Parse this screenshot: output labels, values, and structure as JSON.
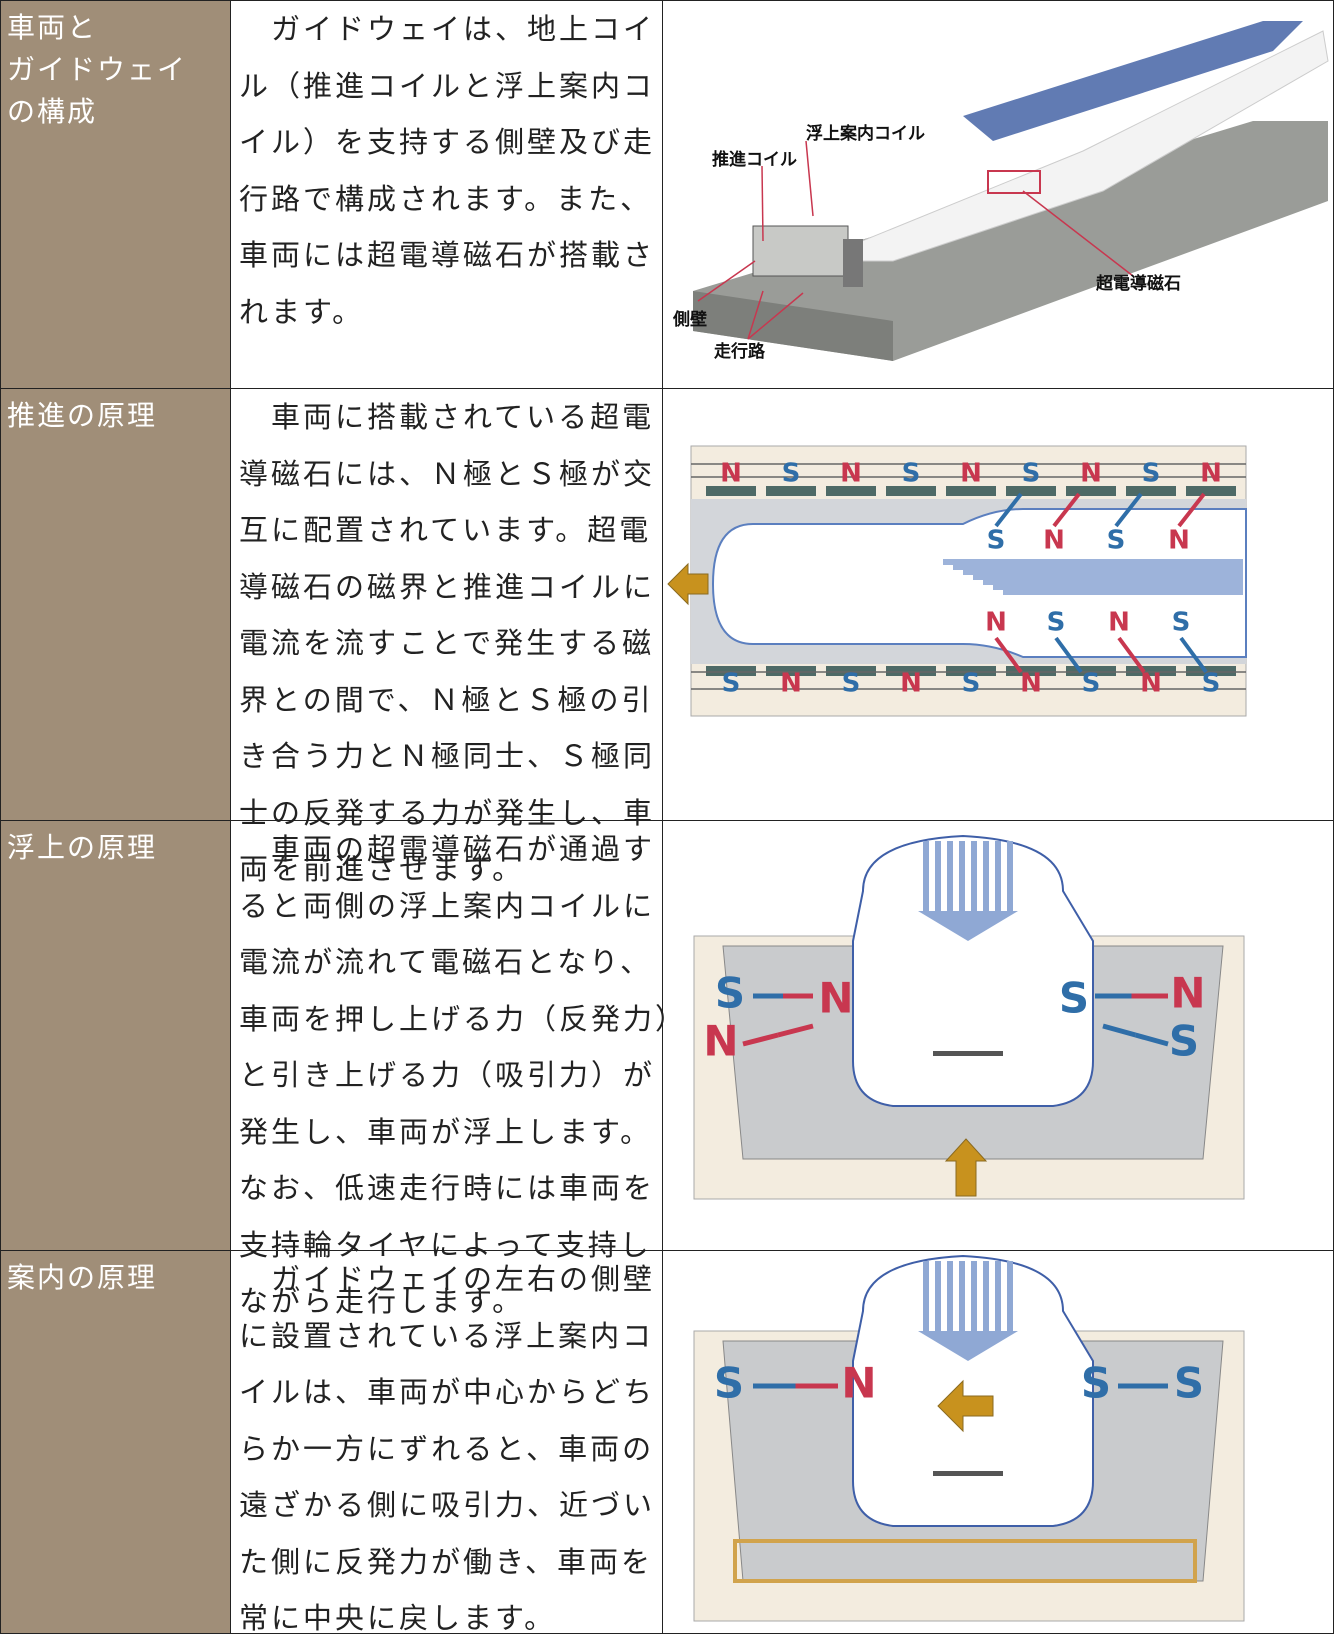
{
  "rows": [
    {
      "heading": [
        "車両と",
        "ガイドウェイ",
        "の構成"
      ],
      "body": [
        "ガイドウェイは、地上コイ",
        "ル（推進コイルと浮上案内コ",
        "イル）を支持する側壁及び走",
        "行路で構成されます。また、",
        "車両には超電導磁石が搭載さ",
        "れます。"
      ],
      "figure": {
        "levitation_coil": "浮上案内コイル",
        "propulsion_coil": "推進コイル",
        "magnet": "超電導磁石",
        "side_wall": "側壁",
        "track": "走行路"
      }
    },
    {
      "heading": [
        "推進の原理"
      ],
      "body": [
        "車両に搭載されている超電",
        "導磁石には、Ｎ極とＳ極が交",
        "互に配置されています。超電",
        "導磁石の磁界と推進コイルに",
        "電流を流すことで発生する磁",
        "界との間で、Ｎ極とＳ極の引",
        "き合う力とＮ極同士、Ｓ極同",
        "士の反発する力が発生し、車",
        "両を前進させます。"
      ],
      "figure": {
        "top": [
          "N",
          "S",
          "N",
          "S",
          "N",
          "S",
          "N",
          "S",
          "N"
        ],
        "upper": [
          "S",
          "N",
          "S",
          "N"
        ],
        "lower": [
          "N",
          "S",
          "N",
          "S"
        ],
        "bottom": [
          "S",
          "N",
          "S",
          "N",
          "S",
          "N",
          "S",
          "N",
          "S"
        ]
      }
    },
    {
      "heading": [
        "浮上の原理"
      ],
      "body": [
        "車両の超電導磁石が通過す",
        "ると両側の浮上案内コイルに",
        "電流が流れて電磁石となり、",
        "車両を押し上げる力（反発力）",
        "と引き上げる力（吸引力）が",
        "発生し、車両が浮上します。",
        "なお、低速走行時には車両を",
        "支持輪タイヤによって支持し",
        "ながら走行します。"
      ],
      "figure": {
        "left": [
          "S",
          "N",
          "N"
        ],
        "right": [
          "S",
          "N",
          "S"
        ]
      }
    },
    {
      "heading": [
        "案内の原理"
      ],
      "body": [
        "ガイドウェイの左右の側壁",
        "に設置されている浮上案内コ",
        "イルは、車両が中心からどち",
        "らか一方にずれると、車両の",
        "遠ざかる側に吸引力、近づい",
        "た側に反発力が働き、車両を",
        "常に中央に戻します。"
      ],
      "figure": {
        "left": [
          "S",
          "N"
        ],
        "right": [
          "S",
          "S"
        ]
      }
    }
  ]
}
